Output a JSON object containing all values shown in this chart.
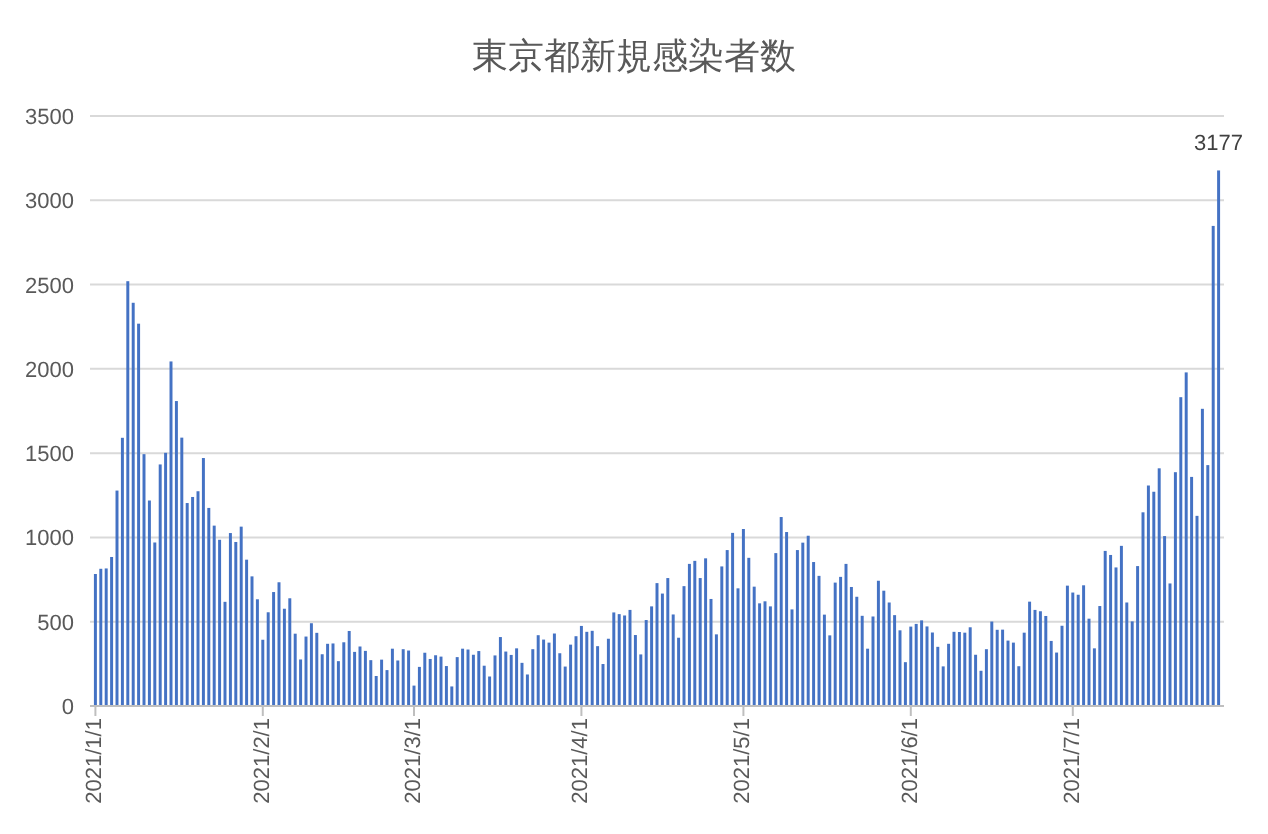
{
  "chart_data": {
    "type": "bar",
    "title": "東京都新規感染者数",
    "color": "#4472c4",
    "grid": "y",
    "xlim": [
      "2020-12-31",
      "2021-07-29"
    ],
    "xticks": [
      {
        "value": "2021-01-01",
        "label": "2021/1/1"
      },
      {
        "value": "2021-02-01",
        "label": "2021/2/1"
      },
      {
        "value": "2021-03-01",
        "label": "2021/3/1"
      },
      {
        "value": "2021-04-01",
        "label": "2021/4/1"
      },
      {
        "value": "2021-05-01",
        "label": "2021/5/1"
      },
      {
        "value": "2021-06-01",
        "label": "2021/6/1"
      },
      {
        "value": "2021-07-01",
        "label": "2021/7/1"
      }
    ],
    "ylim": [
      0,
      3500
    ],
    "yticks": [
      0,
      500,
      1000,
      1500,
      2000,
      2500,
      3000,
      3500
    ],
    "annotations": [
      {
        "text": "3177",
        "x": "2021-07-28",
        "y": 3177
      }
    ],
    "x": [
      "2021-01-01",
      "2021-01-02",
      "2021-01-03",
      "2021-01-04",
      "2021-01-05",
      "2021-01-06",
      "2021-01-07",
      "2021-01-08",
      "2021-01-09",
      "2021-01-10",
      "2021-01-11",
      "2021-01-12",
      "2021-01-13",
      "2021-01-14",
      "2021-01-15",
      "2021-01-16",
      "2021-01-17",
      "2021-01-18",
      "2021-01-19",
      "2021-01-20",
      "2021-01-21",
      "2021-01-22",
      "2021-01-23",
      "2021-01-24",
      "2021-01-25",
      "2021-01-26",
      "2021-01-27",
      "2021-01-28",
      "2021-01-29",
      "2021-01-30",
      "2021-01-31",
      "2021-02-01",
      "2021-02-02",
      "2021-02-03",
      "2021-02-04",
      "2021-02-05",
      "2021-02-06",
      "2021-02-07",
      "2021-02-08",
      "2021-02-09",
      "2021-02-10",
      "2021-02-11",
      "2021-02-12",
      "2021-02-13",
      "2021-02-14",
      "2021-02-15",
      "2021-02-16",
      "2021-02-17",
      "2021-02-18",
      "2021-02-19",
      "2021-02-20",
      "2021-02-21",
      "2021-02-22",
      "2021-02-23",
      "2021-02-24",
      "2021-02-25",
      "2021-02-26",
      "2021-02-27",
      "2021-02-28",
      "2021-03-01",
      "2021-03-02",
      "2021-03-03",
      "2021-03-04",
      "2021-03-05",
      "2021-03-06",
      "2021-03-07",
      "2021-03-08",
      "2021-03-09",
      "2021-03-10",
      "2021-03-11",
      "2021-03-12",
      "2021-03-13",
      "2021-03-14",
      "2021-03-15",
      "2021-03-16",
      "2021-03-17",
      "2021-03-18",
      "2021-03-19",
      "2021-03-20",
      "2021-03-21",
      "2021-03-22",
      "2021-03-23",
      "2021-03-24",
      "2021-03-25",
      "2021-03-26",
      "2021-03-27",
      "2021-03-28",
      "2021-03-29",
      "2021-03-30",
      "2021-03-31",
      "2021-04-01",
      "2021-04-02",
      "2021-04-03",
      "2021-04-04",
      "2021-04-05",
      "2021-04-06",
      "2021-04-07",
      "2021-04-08",
      "2021-04-09",
      "2021-04-10",
      "2021-04-11",
      "2021-04-12",
      "2021-04-13",
      "2021-04-14",
      "2021-04-15",
      "2021-04-16",
      "2021-04-17",
      "2021-04-18",
      "2021-04-19",
      "2021-04-20",
      "2021-04-21",
      "2021-04-22",
      "2021-04-23",
      "2021-04-24",
      "2021-04-25",
      "2021-04-26",
      "2021-04-27",
      "2021-04-28",
      "2021-04-29",
      "2021-04-30",
      "2021-05-01",
      "2021-05-02",
      "2021-05-03",
      "2021-05-04",
      "2021-05-05",
      "2021-05-06",
      "2021-05-07",
      "2021-05-08",
      "2021-05-09",
      "2021-05-10",
      "2021-05-11",
      "2021-05-12",
      "2021-05-13",
      "2021-05-14",
      "2021-05-15",
      "2021-05-16",
      "2021-05-17",
      "2021-05-18",
      "2021-05-19",
      "2021-05-20",
      "2021-05-21",
      "2021-05-22",
      "2021-05-23",
      "2021-05-24",
      "2021-05-25",
      "2021-05-26",
      "2021-05-27",
      "2021-05-28",
      "2021-05-29",
      "2021-05-30",
      "2021-05-31",
      "2021-06-01",
      "2021-06-02",
      "2021-06-03",
      "2021-06-04",
      "2021-06-05",
      "2021-06-06",
      "2021-06-07",
      "2021-06-08",
      "2021-06-09",
      "2021-06-10",
      "2021-06-11",
      "2021-06-12",
      "2021-06-13",
      "2021-06-14",
      "2021-06-15",
      "2021-06-16",
      "2021-06-17",
      "2021-06-18",
      "2021-06-19",
      "2021-06-20",
      "2021-06-21",
      "2021-06-22",
      "2021-06-23",
      "2021-06-24",
      "2021-06-25",
      "2021-06-26",
      "2021-06-27",
      "2021-06-28",
      "2021-06-29",
      "2021-06-30",
      "2021-07-01",
      "2021-07-02",
      "2021-07-03",
      "2021-07-04",
      "2021-07-05",
      "2021-07-06",
      "2021-07-07",
      "2021-07-08",
      "2021-07-09",
      "2021-07-10",
      "2021-07-11",
      "2021-07-12",
      "2021-07-13",
      "2021-07-14",
      "2021-07-15",
      "2021-07-16",
      "2021-07-17",
      "2021-07-18",
      "2021-07-19",
      "2021-07-20",
      "2021-07-21",
      "2021-07-22",
      "2021-07-23",
      "2021-07-24",
      "2021-07-25",
      "2021-07-26",
      "2021-07-27",
      "2021-07-28"
    ],
    "values": [
      783,
      814,
      816,
      884,
      1278,
      1591,
      2520,
      2392,
      2268,
      1494,
      1219,
      970,
      1433,
      1502,
      2044,
      1809,
      1592,
      1204,
      1240,
      1274,
      1471,
      1175,
      1070,
      986,
      618,
      1026,
      973,
      1064,
      868,
      769,
      633,
      393,
      556,
      676,
      734,
      577,
      639,
      429,
      276,
      412,
      491,
      434,
      307,
      369,
      371,
      266,
      378,
      445,
      321,
      353,
      327,
      272,
      178,
      275,
      213,
      340,
      270,
      337,
      329,
      121,
      232,
      316,
      279,
      301,
      293,
      237,
      116,
      290,
      340,
      335,
      304,
      326,
      239,
      175,
      300,
      409,
      323,
      303,
      342,
      256,
      187,
      337,
      420,
      394,
      376,
      430,
      313,
      234,
      364,
      414,
      475,
      440,
      446,
      355,
      249,
      399,
      555,
      545,
      537,
      570,
      421,
      306,
      510,
      591,
      729,
      667,
      759,
      543,
      405,
      711,
      843,
      861,
      759,
      876,
      635,
      425,
      828,
      925,
      1027,
      698,
      1050,
      879,
      708,
      609,
      621,
      591,
      907,
      1121,
      1032,
      573,
      925,
      969,
      1010,
      854,
      772,
      542,
      419,
      732,
      766,
      843,
      706,
      648,
      535,
      340,
      531,
      743,
      684,
      614,
      539,
      449,
      260,
      471,
      487,
      508,
      472,
      436,
      351,
      235,
      369,
      440,
      439,
      435,
      467,
      304,
      209,
      337,
      501,
      452,
      453,
      388,
      376,
      236,
      435,
      619,
      570,
      562,
      534,
      386,
      317,
      476,
      714,
      673,
      660,
      716,
      518,
      342,
      593,
      920,
      896,
      822,
      950,
      614,
      502,
      830,
      1149,
      1308,
      1271,
      1410,
      1008,
      727,
      1387,
      1832,
      1979,
      1359,
      1128,
      1763,
      1429,
      2848,
      3177
    ]
  }
}
